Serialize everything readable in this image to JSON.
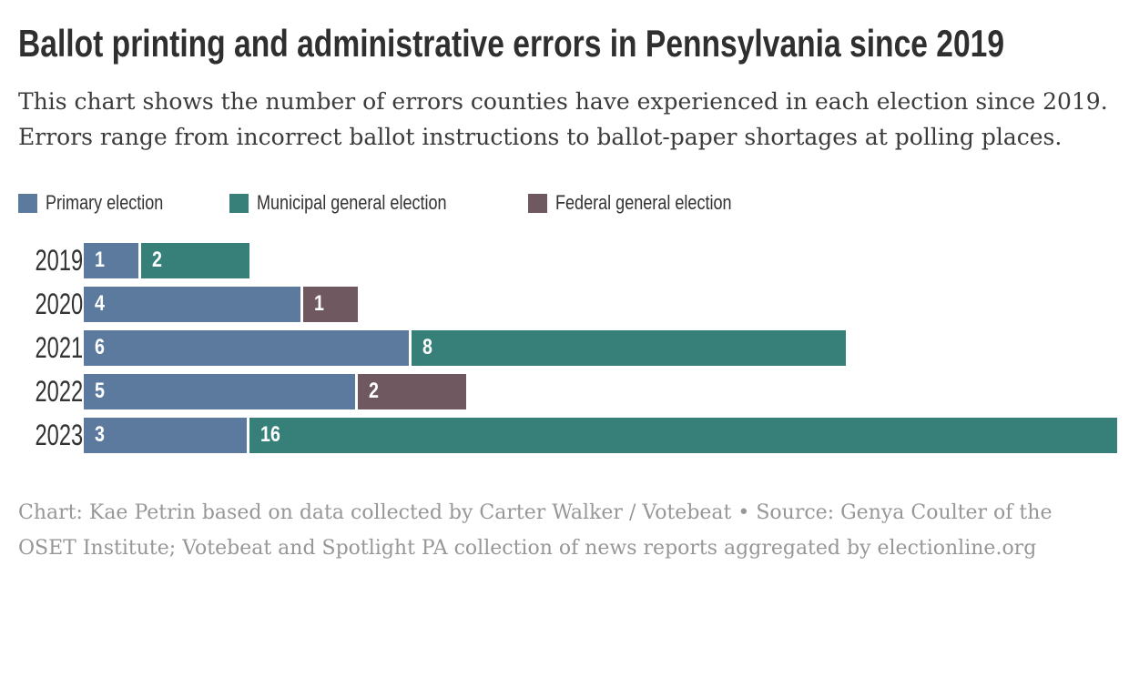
{
  "header": {
    "title": "Ballot printing and administrative errors in Pennsylvania since 2019",
    "description": "This chart shows the number of errors counties have experienced in each election since 2019. Errors range from incorrect ballot instructions to ballot-paper shortages at polling places."
  },
  "footer": {
    "text": "Chart: Kae Petrin based on data collected by Carter Walker / Votebeat • Source: Genya Coulter of the OSET Institute; Votebeat and Spotlight PA collection of news reports aggregated by electionline.org"
  },
  "colors": {
    "primary_election": "#5b7a9d",
    "municipal_general_election": "#37807a",
    "federal_general_election": "#705860",
    "title_text": "#2f2f2f",
    "body_text": "#3b3b3b",
    "axis_text": "#333333",
    "source_text": "#979797",
    "background": "#ffffff",
    "value_label_text": "#ffffff"
  },
  "chart_data": {
    "type": "bar",
    "orientation": "horizontal",
    "stacked": true,
    "grid": false,
    "legend_position": "top",
    "value_labels": "inside-start",
    "title": "Ballot printing and administrative errors in Pennsylvania since 2019",
    "xlabel": "",
    "ylabel": "",
    "xmax": 19,
    "categories": [
      "2019",
      "2020",
      "2021",
      "2022",
      "2023"
    ],
    "series": [
      {
        "name": "Primary election",
        "color": "#5b7a9d",
        "values": [
          1,
          4,
          6,
          5,
          3
        ]
      },
      {
        "name": "Municipal general election",
        "color": "#37807a",
        "values": [
          2,
          0,
          8,
          0,
          16
        ]
      },
      {
        "name": "Federal general election",
        "color": "#705860",
        "values": [
          0,
          1,
          0,
          2,
          0
        ]
      }
    ],
    "row_totals": [
      3,
      5,
      14,
      7,
      19
    ]
  }
}
